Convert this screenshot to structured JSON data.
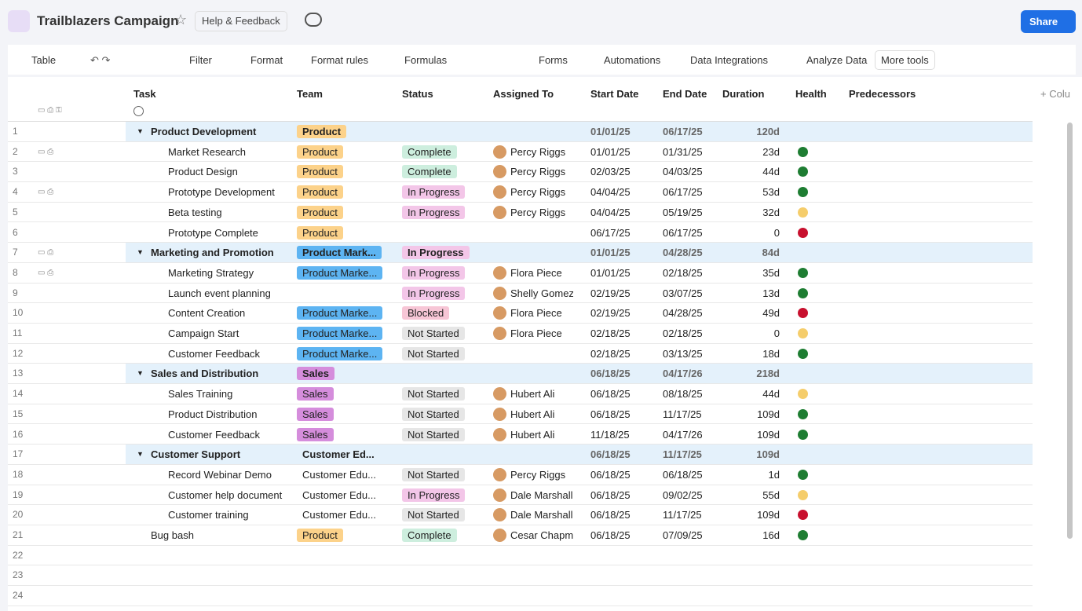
{
  "header": {
    "title": "Trailblazers Campaign",
    "help": "Help & Feedback",
    "share": "Share"
  },
  "toolbar": [
    "Table",
    "Filter",
    "Format",
    "Format rules",
    "Formulas",
    "Forms",
    "Automations",
    "Data Integrations",
    "Analyze Data",
    "More tools"
  ],
  "columns": [
    "Task",
    "Team",
    "Status",
    "Assigned To",
    "Start Date",
    "End Date",
    "Duration",
    "Health",
    "Predecessors"
  ],
  "add_column": "Colu",
  "rows": [
    {
      "n": 1,
      "level": "group",
      "task": "Product Development",
      "team": "Product",
      "team_color": "#fcd28a",
      "start": "01/01/25",
      "end": "06/17/25",
      "duration": "120d"
    },
    {
      "n": 2,
      "level": "child",
      "notes": true,
      "task": "Market Research",
      "team": "Product",
      "team_color": "#fcd28a",
      "status": "Complete",
      "status_color": "#cdeede",
      "assigned": "Percy Riggs",
      "start": "01/01/25",
      "end": "01/31/25",
      "duration": "23d",
      "health": "#1e7d32"
    },
    {
      "n": 3,
      "level": "child",
      "task": "Product Design",
      "team": "Product",
      "team_color": "#fcd28a",
      "status": "Complete",
      "status_color": "#cdeede",
      "assigned": "Percy Riggs",
      "start": "02/03/25",
      "end": "04/03/25",
      "duration": "44d",
      "health": "#1e7d32"
    },
    {
      "n": 4,
      "level": "child",
      "notes": true,
      "task": "Prototype Development",
      "team": "Product",
      "team_color": "#fcd28a",
      "status": "In Progress",
      "status_color": "#f3c6e8",
      "assigned": "Percy Riggs",
      "start": "04/04/25",
      "end": "06/17/25",
      "duration": "53d",
      "health": "#1e7d32"
    },
    {
      "n": 5,
      "level": "child",
      "task": "Beta testing",
      "team": "Product",
      "team_color": "#fcd28a",
      "status": "In Progress",
      "status_color": "#f3c6e8",
      "assigned": "Percy Riggs",
      "start": "04/04/25",
      "end": "05/19/25",
      "duration": "32d",
      "health": "#f5cd6b"
    },
    {
      "n": 6,
      "level": "child",
      "task": "Prototype Complete",
      "team": "Product",
      "team_color": "#fcd28a",
      "start": "06/17/25",
      "end": "06/17/25",
      "duration": "0",
      "health": "#c8102e"
    },
    {
      "n": 7,
      "level": "group",
      "notes": true,
      "task": "Marketing and Promotion",
      "team": "Product Mark...",
      "team_color": "#5db4f2",
      "status": "In Progress",
      "status_color": "#f3c6e8",
      "start": "01/01/25",
      "end": "04/28/25",
      "duration": "84d"
    },
    {
      "n": 8,
      "level": "child",
      "notes": true,
      "task": "Marketing Strategy",
      "team": "Product Marke...",
      "team_color": "#5db4f2",
      "status": "In Progress",
      "status_color": "#f3c6e8",
      "assigned": "Flora Piece",
      "start": "01/01/25",
      "end": "02/18/25",
      "duration": "35d",
      "health": "#1e7d32"
    },
    {
      "n": 9,
      "level": "child",
      "task": "Launch event planning",
      "status": "In Progress",
      "status_color": "#f3c6e8",
      "assigned": "Shelly Gomez",
      "start": "02/19/25",
      "end": "03/07/25",
      "duration": "13d",
      "health": "#1e7d32"
    },
    {
      "n": 10,
      "level": "child",
      "task": "Content Creation",
      "team": "Product Marke...",
      "team_color": "#5db4f2",
      "status": "Blocked",
      "status_color": "#f7c6d6",
      "assigned": "Flora Piece",
      "start": "02/19/25",
      "end": "04/28/25",
      "duration": "49d",
      "health": "#c8102e"
    },
    {
      "n": 11,
      "level": "child",
      "task": "Campaign Start",
      "team": "Product Marke...",
      "team_color": "#5db4f2",
      "status": "Not Started",
      "status_color": "#e6e6e6",
      "assigned": "Flora Piece",
      "start": "02/18/25",
      "end": "02/18/25",
      "duration": "0",
      "health": "#f5cd6b"
    },
    {
      "n": 12,
      "level": "child",
      "task": "Customer Feedback",
      "team": "Product Marke...",
      "team_color": "#5db4f2",
      "status": "Not Started",
      "status_color": "#e6e6e6",
      "start": "02/18/25",
      "end": "03/13/25",
      "duration": "18d",
      "health": "#1e7d32"
    },
    {
      "n": 13,
      "level": "group",
      "task": "Sales and Distribution",
      "team": "Sales",
      "team_color": "#d58ddc",
      "start": "06/18/25",
      "end": "04/17/26",
      "duration": "218d"
    },
    {
      "n": 14,
      "level": "child",
      "task": "Sales Training",
      "team": "Sales",
      "team_color": "#d58ddc",
      "status": "Not Started",
      "status_color": "#e6e6e6",
      "assigned": "Hubert Ali",
      "start": "06/18/25",
      "end": "08/18/25",
      "duration": "44d",
      "health": "#f5cd6b"
    },
    {
      "n": 15,
      "level": "child",
      "task": "Product Distribution",
      "team": "Sales",
      "team_color": "#d58ddc",
      "status": "Not Started",
      "status_color": "#e6e6e6",
      "assigned": "Hubert Ali",
      "start": "06/18/25",
      "end": "11/17/25",
      "duration": "109d",
      "health": "#1e7d32"
    },
    {
      "n": 16,
      "level": "child",
      "task": "Customer Feedback",
      "team": "Sales",
      "team_color": "#d58ddc",
      "status": "Not Started",
      "status_color": "#e6e6e6",
      "assigned": "Hubert Ali",
      "start": "11/18/25",
      "end": "04/17/26",
      "duration": "109d",
      "health": "#1e7d32"
    },
    {
      "n": 17,
      "level": "group",
      "task": "Customer Support",
      "team": "Customer Ed...",
      "start": "06/18/25",
      "end": "11/17/25",
      "duration": "109d"
    },
    {
      "n": 18,
      "level": "child",
      "task": "Record Webinar Demo",
      "team": "Customer Edu...",
      "status": "Not Started",
      "status_color": "#e6e6e6",
      "assigned": "Percy Riggs",
      "start": "06/18/25",
      "end": "06/18/25",
      "duration": "1d",
      "health": "#1e7d32"
    },
    {
      "n": 19,
      "level": "child",
      "task": "Customer help document",
      "team": "Customer Edu...",
      "status": "In Progress",
      "status_color": "#f3c6e8",
      "assigned": "Dale Marshall",
      "start": "06/18/25",
      "end": "09/02/25",
      "duration": "55d",
      "health": "#f5cd6b"
    },
    {
      "n": 20,
      "level": "child",
      "task": "Customer training",
      "team": "Customer Edu...",
      "status": "Not Started",
      "status_color": "#e6e6e6",
      "assigned": "Dale Marshall",
      "start": "06/18/25",
      "end": "11/17/25",
      "duration": "109d",
      "health": "#c8102e"
    },
    {
      "n": 21,
      "level": "top",
      "task": "Bug bash",
      "team": "Product",
      "team_color": "#fcd28a",
      "status": "Complete",
      "status_color": "#cdeede",
      "assigned": "Cesar Chapma",
      "start": "06/18/25",
      "end": "07/09/25",
      "duration": "16d",
      "health": "#1e7d32"
    },
    {
      "n": 22
    },
    {
      "n": 23
    },
    {
      "n": 24
    }
  ]
}
